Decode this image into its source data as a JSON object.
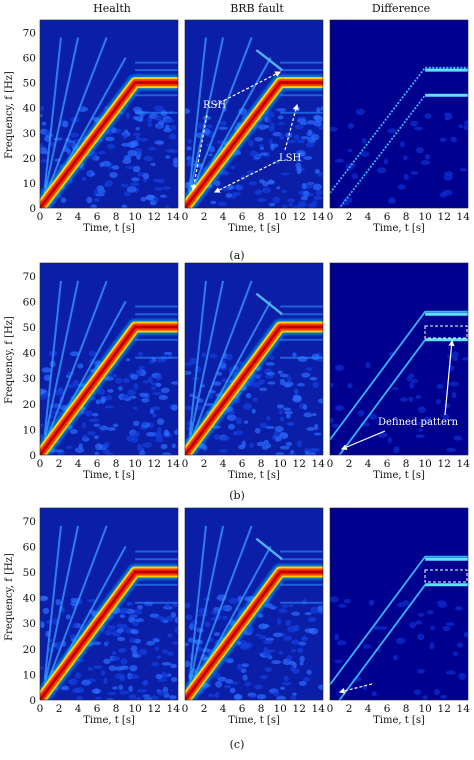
{
  "figure": {
    "column_titles": [
      "Health",
      "BRB fault",
      "Difference"
    ],
    "subfigure_labels": [
      "(a)",
      "(b)",
      "(c)"
    ],
    "ylabel": "Frequency, f [Hz]",
    "xlabel": "Time, t [s]",
    "annotations": {
      "a_brb": [
        "RSH",
        "LSH"
      ],
      "b_diff": [
        "Defined pattern"
      ]
    }
  },
  "chart_data": [
    {
      "type": "heatmap",
      "row": "(a)",
      "panels": [
        "Health",
        "BRB fault",
        "Difference"
      ],
      "xlim": [
        0,
        14.5
      ],
      "ylim": [
        0,
        75
      ],
      "xticks": [
        0,
        2,
        4,
        6,
        8,
        10,
        12,
        14
      ],
      "yticks": [
        0,
        10,
        20,
        30,
        40,
        50,
        60,
        70
      ],
      "fundamental": [
        {
          "t": 0,
          "f": 0
        },
        {
          "t": 10,
          "f": 50
        },
        {
          "t": 14.5,
          "f": 50
        }
      ],
      "sidebands": {
        "RSH": [
          {
            "t": 0,
            "f": 5
          },
          {
            "t": 10,
            "f": 55
          }
        ],
        "LSH": [
          {
            "t": 0,
            "f": -5
          },
          {
            "t": 10,
            "f": 45
          }
        ]
      },
      "colormap": "jet"
    },
    {
      "type": "heatmap",
      "row": "(b)",
      "panels": [
        "Health",
        "BRB fault",
        "Difference"
      ],
      "xlim": [
        0,
        14.5
      ],
      "ylim": [
        0,
        75
      ],
      "xticks": [
        0,
        2,
        4,
        6,
        8,
        10,
        12,
        14
      ],
      "yticks": [
        0,
        10,
        20,
        30,
        40,
        50,
        60,
        70
      ],
      "fundamental": [
        {
          "t": 0,
          "f": 0
        },
        {
          "t": 10,
          "f": 50
        },
        {
          "t": 14.5,
          "f": 50
        }
      ],
      "colormap": "jet"
    },
    {
      "type": "heatmap",
      "row": "(c)",
      "panels": [
        "Health",
        "BRB fault",
        "Difference"
      ],
      "xlim": [
        0,
        14.5
      ],
      "ylim": [
        0,
        75
      ],
      "xticks": [
        0,
        2,
        4,
        6,
        8,
        10,
        12,
        14
      ],
      "yticks": [
        0,
        10,
        20,
        30,
        40,
        50,
        60,
        70
      ],
      "fundamental": [
        {
          "t": 0,
          "f": 0
        },
        {
          "t": 10,
          "f": 50
        },
        {
          "t": 14.5,
          "f": 50
        }
      ],
      "colormap": "jet"
    }
  ]
}
